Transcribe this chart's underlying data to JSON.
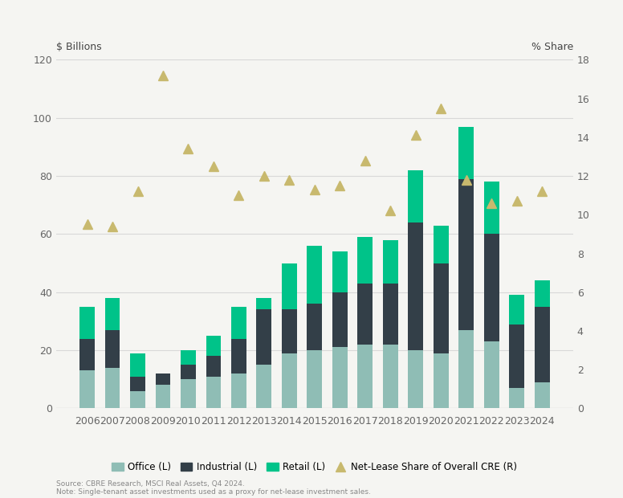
{
  "years": [
    2006,
    2007,
    2008,
    2009,
    2010,
    2011,
    2012,
    2013,
    2014,
    2015,
    2016,
    2017,
    2018,
    2019,
    2020,
    2021,
    2022,
    2023,
    2024
  ],
  "office": [
    13,
    14,
    6,
    8,
    10,
    11,
    12,
    15,
    19,
    20,
    21,
    22,
    22,
    20,
    19,
    27,
    23,
    7,
    9
  ],
  "industrial": [
    11,
    13,
    5,
    4,
    5,
    7,
    12,
    19,
    15,
    16,
    19,
    21,
    21,
    44,
    31,
    52,
    37,
    22,
    26
  ],
  "retail": [
    11,
    11,
    8,
    0,
    5,
    7,
    11,
    4,
    16,
    20,
    14,
    16,
    15,
    18,
    13,
    18,
    18,
    10,
    9
  ],
  "net_lease_share": [
    9.5,
    9.4,
    11.2,
    17.2,
    13.4,
    12.5,
    11.0,
    12.0,
    11.8,
    11.3,
    11.5,
    12.8,
    10.2,
    14.1,
    15.5,
    11.8,
    10.6,
    10.7,
    11.2
  ],
  "office_color": "#8fbdb5",
  "industrial_color": "#333f48",
  "retail_color": "#00c389",
  "marker_color": "#c8b96e",
  "background_color": "#f5f5f2",
  "grid_color": "#d8d8d8",
  "ylabel_left": "$ Billions",
  "ylabel_right": "% Share",
  "ylim_left": [
    0,
    120
  ],
  "ylim_right": [
    0,
    18
  ],
  "yticks_left": [
    0,
    20,
    40,
    60,
    80,
    100,
    120
  ],
  "yticks_right": [
    0,
    2,
    4,
    6,
    8,
    10,
    12,
    14,
    16,
    18
  ],
  "legend_labels": [
    "Office (L)",
    "Industrial (L)",
    "Retail (L)",
    "Net-Lease Share of Overall CRE (R)"
  ],
  "source_text": "Source: CBRE Research, MSCI Real Assets, Q4 2024.\nNote: Single-tenant asset investments used as a proxy for net-lease investment sales.",
  "axis_fontsize": 9,
  "tick_fontsize": 9,
  "label_fontsize": 9
}
